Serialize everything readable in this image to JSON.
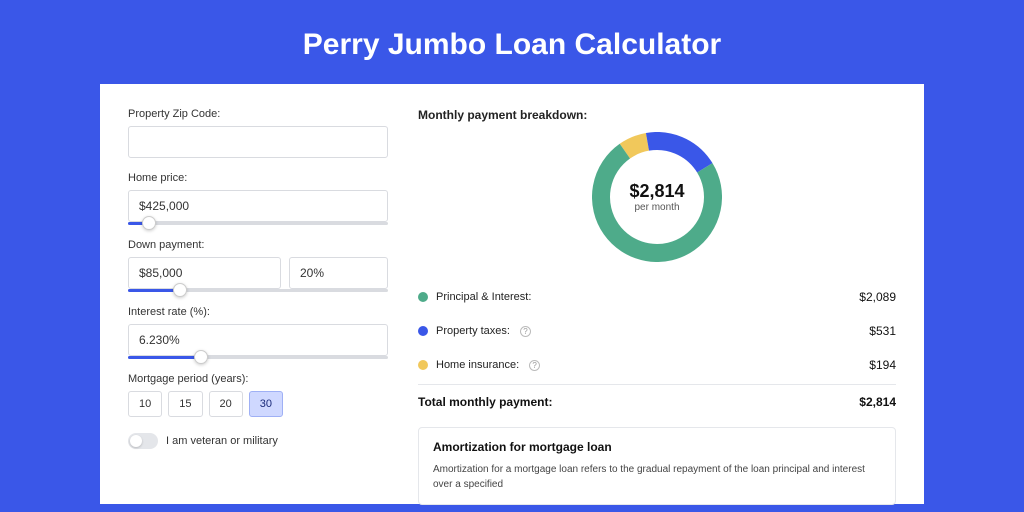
{
  "page": {
    "title": "Perry Jumbo Loan Calculator",
    "background_color": "#3a57e8",
    "shadow_color": "#2b46d1",
    "card_bg": "#ffffff"
  },
  "form": {
    "zip_label": "Property Zip Code:",
    "zip_value": "",
    "home_price_label": "Home price:",
    "home_price_value": "$425,000",
    "home_price_slider_pct": 8,
    "down_label": "Down payment:",
    "down_value": "$85,000",
    "down_pct_value": "20%",
    "down_slider_pct": 20,
    "rate_label": "Interest rate (%):",
    "rate_value": "6.230%",
    "rate_slider_pct": 28,
    "period_label": "Mortgage period (years):",
    "periods": [
      "10",
      "15",
      "20",
      "30"
    ],
    "period_selected_index": 3,
    "veteran_label": "I am veteran or military",
    "veteran_on": false
  },
  "breakdown": {
    "title": "Monthly payment breakdown:",
    "center_amount": "$2,814",
    "center_sub": "per month",
    "items": [
      {
        "label": "Principal & Interest:",
        "value": "$2,089",
        "color": "#4eab8a",
        "pct": 74,
        "info": false
      },
      {
        "label": "Property taxes:",
        "value": "$531",
        "color": "#3a57e8",
        "pct": 19,
        "info": true
      },
      {
        "label": "Home insurance:",
        "value": "$194",
        "color": "#f1c85b",
        "pct": 7,
        "info": true
      }
    ],
    "total_label": "Total monthly payment:",
    "total_value": "$2,814",
    "donut": {
      "size": 130,
      "stroke": 18,
      "bg": "#ffffff"
    }
  },
  "amort": {
    "title": "Amortization for mortgage loan",
    "text": "Amortization for a mortgage loan refers to the gradual repayment of the loan principal and interest over a specified"
  }
}
